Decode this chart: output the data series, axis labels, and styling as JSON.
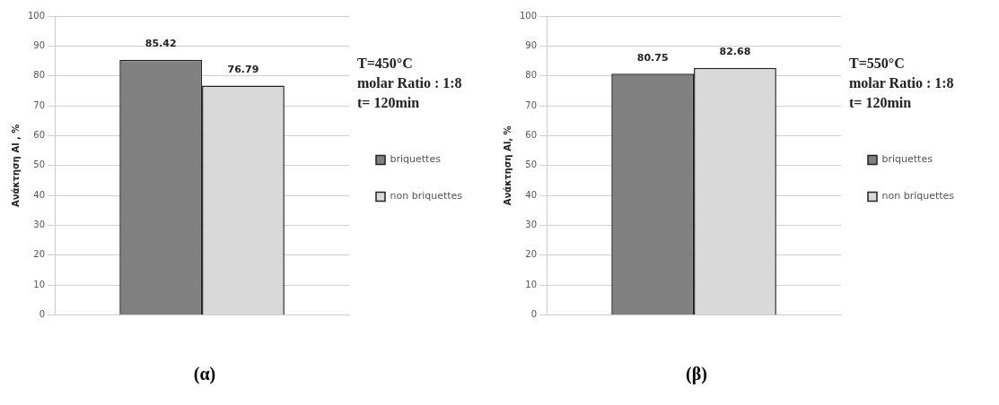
{
  "chart_data": [
    {
      "type": "bar",
      "categories": [
        null
      ],
      "ylabel": "Ανάκτηση Al , %",
      "series": [
        {
          "name": "briquettes",
          "color": "#808080",
          "values": [
            85.42
          ]
        },
        {
          "name": "non briquettes",
          "color": "#d9d9d9",
          "values": [
            76.79
          ]
        }
      ],
      "ylim": [
        0,
        100
      ],
      "yticks": [
        0,
        10,
        20,
        30,
        40,
        50,
        60,
        70,
        80,
        90,
        100
      ],
      "grid": "y",
      "legend": "right",
      "data_labels": true,
      "annotations": [
        "T=450°C",
        "molar Ratio : 1:8",
        "t= 120min",
        "(α)"
      ]
    },
    {
      "type": "bar",
      "categories": [
        null
      ],
      "ylabel": "Ανάκτηση Al, %",
      "series": [
        {
          "name": "briquettes",
          "color": "#808080",
          "values": [
            80.75
          ]
        },
        {
          "name": "non briquettes",
          "color": "#d9d9d9",
          "values": [
            82.68
          ]
        }
      ],
      "ylim": [
        0,
        100
      ],
      "yticks": [
        0,
        10,
        20,
        30,
        40,
        50,
        60,
        70,
        80,
        90,
        100
      ],
      "grid": "y",
      "legend": "right",
      "data_labels": true,
      "annotations": [
        "T=550°C",
        "molar Ratio : 1:8",
        "t= 120min",
        "(β)"
      ]
    }
  ]
}
